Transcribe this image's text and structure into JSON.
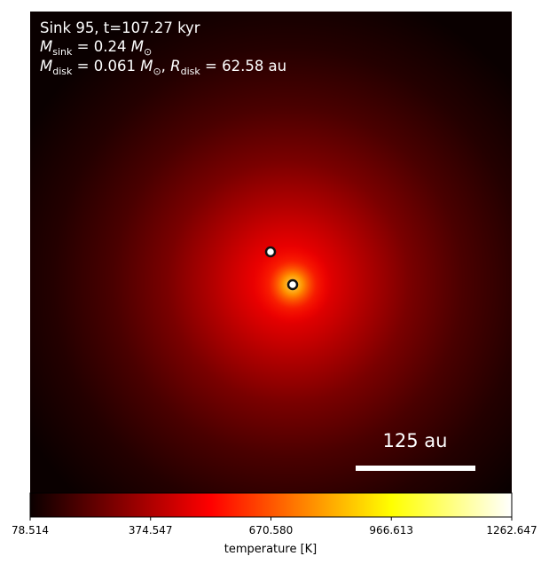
{
  "annotation": {
    "sink_line": "Sink 95, t=107.27 kyr",
    "mass_sink": {
      "symbol": "M",
      "subscript": "sink",
      "value": " = 0.24 ",
      "unit_symbol": "M",
      "unit_subscript": "⊙"
    },
    "mass_disk": {
      "symbol": "M",
      "subscript": "disk",
      "value": " = 0.061 ",
      "unit_symbol": "M",
      "unit_subscript": "⊙",
      "separator": ", ",
      "radius_symbol": "R",
      "radius_subscript": "disk",
      "radius_value": " = 62.58 au"
    }
  },
  "scale_bar": {
    "label": "125 au",
    "length_au": 125
  },
  "colorbar": {
    "label": "temperature [K]",
    "min": 78.514,
    "max": 1262.647,
    "ticks": [
      "78.514",
      "374.547",
      "670.580",
      "966.613",
      "1262.647"
    ],
    "colormap": "hot"
  },
  "sinks": [
    {
      "name": "sink-primary",
      "marker": "white circle with black edge"
    },
    {
      "name": "sink-secondary",
      "marker": "white circle with black edge"
    }
  ],
  "colors": {
    "background_dark": "#0a0000",
    "map_mid": "#8a0000",
    "map_hot": "#ff2000",
    "map_core": "#ffd040"
  }
}
